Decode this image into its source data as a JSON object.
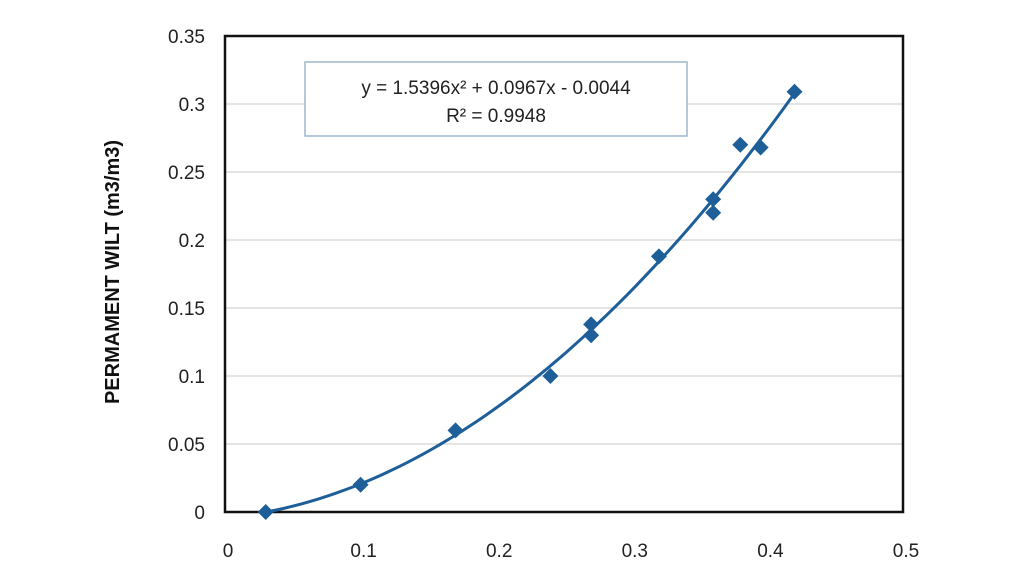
{
  "chart_data": {
    "type": "scatter",
    "title": "",
    "xlabel": "",
    "ylabel": "PERMAMENT WILT (m3/m3)",
    "xlim": [
      0,
      0.5
    ],
    "ylim": [
      0,
      0.35
    ],
    "x_ticks": [
      "0",
      "0.1",
      "0.2",
      "0.3",
      "0.4",
      "0.5"
    ],
    "y_ticks": [
      "0",
      "0.05",
      "0.1",
      "0.15",
      "0.2",
      "0.25",
      "0.3",
      "0.35"
    ],
    "grid": "horizontal",
    "marker": "diamond",
    "color": "#1f5f99",
    "points": [
      {
        "x": 0.03,
        "y": 0.0
      },
      {
        "x": 0.1,
        "y": 0.02
      },
      {
        "x": 0.17,
        "y": 0.06
      },
      {
        "x": 0.24,
        "y": 0.1
      },
      {
        "x": 0.27,
        "y": 0.13
      },
      {
        "x": 0.27,
        "y": 0.138
      },
      {
        "x": 0.32,
        "y": 0.188
      },
      {
        "x": 0.36,
        "y": 0.22
      },
      {
        "x": 0.36,
        "y": 0.23
      },
      {
        "x": 0.38,
        "y": 0.27
      },
      {
        "x": 0.395,
        "y": 0.268
      },
      {
        "x": 0.42,
        "y": 0.309
      }
    ],
    "trendline": {
      "type": "polynomial",
      "coefficients": [
        1.5396,
        0.0967,
        -0.0044
      ],
      "equation": "y = 1.5396x² + 0.0967x - 0.0044",
      "r_squared": "R² = 0.9948"
    }
  }
}
